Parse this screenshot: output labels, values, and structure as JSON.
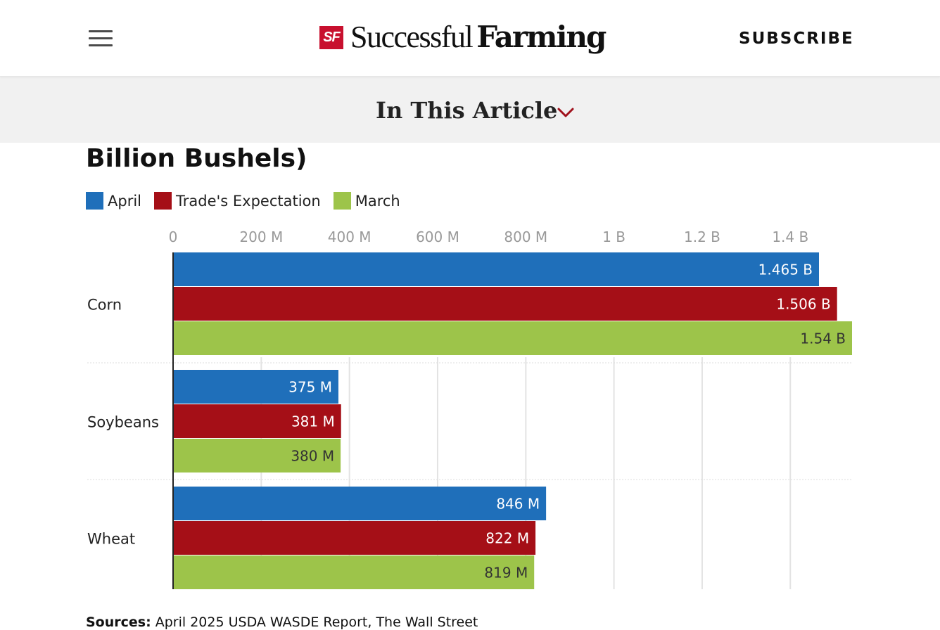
{
  "header": {
    "menu_icon": "hamburger-menu-icon",
    "logo_badge": "SF",
    "logo_word1": "Successful",
    "logo_word2": "Farming",
    "subscribe_label": "SUBSCRIBE"
  },
  "toc": {
    "title": "In This Article",
    "chevron_icon": "chevron-down-icon",
    "chevron_color": "#a0111c"
  },
  "chart_data": {
    "type": "bar",
    "orientation": "horizontal",
    "title": "Billion Bushels)",
    "categories": [
      "Corn",
      "Soybeans",
      "Wheat"
    ],
    "series": [
      {
        "name": "April",
        "color": "#1f6fba",
        "values": [
          1465000000,
          375000000,
          846000000
        ],
        "labels": [
          "1.465 B",
          "375 M",
          "846 M"
        ]
      },
      {
        "name": "Trade's Expectation",
        "color": "#a50f17",
        "values": [
          1506000000,
          381000000,
          822000000
        ],
        "labels": [
          "1.506 B",
          "381 M",
          "822 M"
        ]
      },
      {
        "name": "March",
        "color": "#9dc44a",
        "values": [
          1540000000,
          380000000,
          819000000
        ],
        "labels": [
          "1.54 B",
          "380 M",
          "819 M"
        ]
      }
    ],
    "xlim": [
      0,
      1540000000
    ],
    "ticks": [
      0,
      200000000,
      400000000,
      600000000,
      800000000,
      1000000000,
      1200000000,
      1400000000
    ],
    "tick_labels": [
      "0",
      "200 M",
      "400 M",
      "600 M",
      "800 M",
      "1 B",
      "1.2 B",
      "1.4 B"
    ],
    "grid": true,
    "legend_position": "top-left"
  },
  "sources": {
    "label": "Sources:",
    "text": " April 2025 USDA WASDE Report, The Wall Street"
  }
}
